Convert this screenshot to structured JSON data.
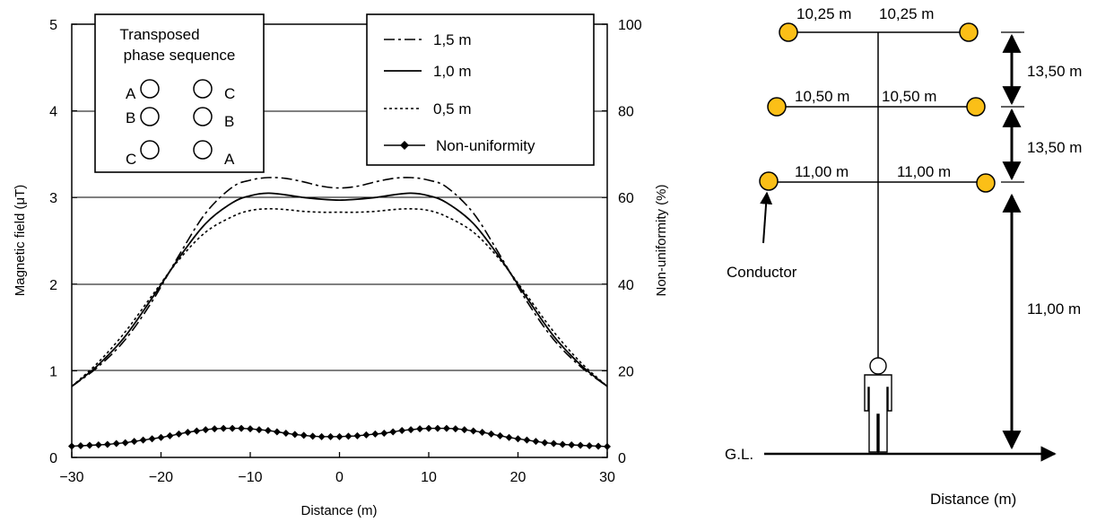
{
  "chart_data": {
    "type": "line",
    "xlabel": "Distance (m)",
    "ylabel": "Magnetic field  (μT)",
    "y2label": "Non-uniformity  (%)",
    "xlim": [
      -30,
      30
    ],
    "ylim": [
      0,
      5
    ],
    "y2lim": [
      0,
      100
    ],
    "xticks": [
      "−30",
      "−20",
      "−10",
      "0",
      "10",
      "20",
      "30"
    ],
    "yticks": [
      "0",
      "1",
      "2",
      "3",
      "4",
      "5"
    ],
    "y2ticks": [
      "0",
      "20",
      "40",
      "60",
      "80",
      "100"
    ],
    "grid": true,
    "legend_position": "top-right",
    "series": [
      {
        "name": "1,5 m",
        "style": "dash-dot",
        "x": [
          -30,
          -27,
          -24,
          -21,
          -18,
          -15,
          -12,
          -10,
          -8,
          -6,
          -4,
          -2,
          0,
          2,
          4,
          6,
          8,
          10,
          12,
          15,
          18,
          21,
          24,
          27,
          30
        ],
        "y": [
          0.82,
          1.05,
          1.36,
          1.8,
          2.33,
          2.82,
          3.12,
          3.2,
          3.23,
          3.22,
          3.18,
          3.13,
          3.11,
          3.13,
          3.18,
          3.22,
          3.23,
          3.2,
          3.12,
          2.82,
          2.33,
          1.8,
          1.36,
          1.05,
          0.82
        ]
      },
      {
        "name": "1,0 m",
        "style": "solid",
        "x": [
          -30,
          -27,
          -24,
          -21,
          -18,
          -15,
          -12,
          -10,
          -8,
          -6,
          -4,
          -2,
          0,
          2,
          4,
          6,
          8,
          10,
          12,
          15,
          18,
          21,
          24,
          27,
          30
        ],
        "y": [
          0.82,
          1.07,
          1.4,
          1.84,
          2.3,
          2.7,
          2.94,
          3.02,
          3.05,
          3.03,
          3.0,
          2.98,
          2.97,
          2.98,
          3.0,
          3.03,
          3.05,
          3.02,
          2.94,
          2.7,
          2.3,
          1.84,
          1.4,
          1.07,
          0.82
        ]
      },
      {
        "name": "0,5 m",
        "style": "dotted",
        "x": [
          -30,
          -27,
          -24,
          -21,
          -18,
          -15,
          -12,
          -10,
          -8,
          -6,
          -4,
          -2,
          0,
          2,
          4,
          6,
          8,
          10,
          12,
          15,
          18,
          21,
          24,
          27,
          30
        ],
        "y": [
          0.82,
          1.1,
          1.45,
          1.87,
          2.28,
          2.6,
          2.78,
          2.85,
          2.87,
          2.86,
          2.84,
          2.83,
          2.83,
          2.83,
          2.84,
          2.86,
          2.87,
          2.85,
          2.78,
          2.6,
          2.28,
          1.87,
          1.45,
          1.1,
          0.82
        ]
      },
      {
        "name": "Non-uniformity",
        "axis": "right",
        "style": "solid-diamonds",
        "x": [
          -30,
          -29,
          -28,
          -27,
          -26,
          -25,
          -24,
          -23,
          -22,
          -21,
          -20,
          -19,
          -18,
          -17,
          -16,
          -15,
          -14,
          -13,
          -12,
          -11,
          -10,
          -9,
          -8,
          -7,
          -6,
          -5,
          -4,
          -3,
          -2,
          -1,
          0,
          1,
          2,
          3,
          4,
          5,
          6,
          7,
          8,
          9,
          10,
          11,
          12,
          13,
          14,
          15,
          16,
          17,
          18,
          19,
          20,
          21,
          22,
          23,
          24,
          25,
          26,
          27,
          28,
          29,
          30
        ],
        "y": [
          2.6,
          2.7,
          2.8,
          2.9,
          3.0,
          3.2,
          3.4,
          3.7,
          4.0,
          4.3,
          4.6,
          5.0,
          5.4,
          5.8,
          6.1,
          6.4,
          6.6,
          6.7,
          6.7,
          6.7,
          6.6,
          6.4,
          6.2,
          5.9,
          5.6,
          5.3,
          5.1,
          4.9,
          4.8,
          4.8,
          4.8,
          4.9,
          5.0,
          5.2,
          5.4,
          5.6,
          5.9,
          6.2,
          6.4,
          6.6,
          6.7,
          6.7,
          6.7,
          6.6,
          6.4,
          6.1,
          5.8,
          5.4,
          5.0,
          4.6,
          4.3,
          4.0,
          3.7,
          3.4,
          3.2,
          3.0,
          2.9,
          2.8,
          2.7,
          2.6,
          2.5
        ]
      }
    ]
  },
  "inset": {
    "title_line1": "Transposed",
    "title_line2": "phase sequence",
    "left_phases": [
      "A",
      "B",
      "C"
    ],
    "right_phases": [
      "C",
      "B",
      "A"
    ]
  },
  "legend": {
    "items": [
      "1,5 m",
      "1,0 m",
      "0,5 m",
      "Non-uniformity"
    ]
  },
  "diagram": {
    "colors": {
      "conductor": "#fbbf17"
    },
    "arm_labels": {
      "top_left": "10,25 m",
      "top_right": "10,25 m",
      "mid_left": "10,50 m",
      "mid_right": "10,50 m",
      "bot_left": "11,00 m",
      "bot_right": "11,00 m"
    },
    "spacing": {
      "upper": "13,50 m",
      "lower": "13,50 m",
      "ground": "11,00 m"
    },
    "conductor_label": "Conductor",
    "ground_label": "G.L.",
    "axis_label": "Distance (m)"
  }
}
